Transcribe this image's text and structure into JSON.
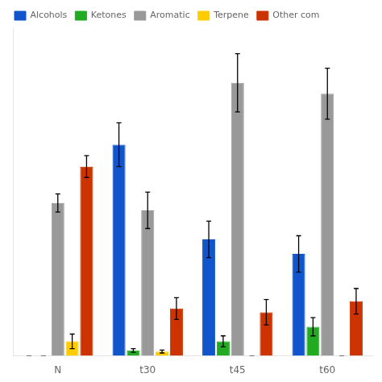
{
  "chart_data": {
    "type": "bar",
    "categories": [
      "N",
      "t30",
      "t45",
      "t60"
    ],
    "series": [
      {
        "name": "Alcohols",
        "color": "#1155CC",
        "values": [
          0.0,
          58.0,
          32.0,
          28.0
        ],
        "errors": [
          0.0,
          6.0,
          5.0,
          5.0
        ]
      },
      {
        "name": "Ketones",
        "color": "#22AA22",
        "values": [
          0.0,
          1.5,
          4.0,
          8.0
        ],
        "errors": [
          0.0,
          0.5,
          1.5,
          2.5
        ]
      },
      {
        "name": "Aromatic",
        "color": "#999999",
        "values": [
          42.0,
          40.0,
          75.0,
          72.0
        ],
        "errors": [
          2.5,
          5.0,
          8.0,
          7.0
        ]
      },
      {
        "name": "Terpene",
        "color": "#FFCC00",
        "values": [
          4.0,
          1.2,
          0.0,
          0.0
        ],
        "errors": [
          2.0,
          0.4,
          0.0,
          0.0
        ]
      },
      {
        "name": "Other com",
        "color": "#CC3300",
        "values": [
          52.0,
          13.0,
          12.0,
          15.0
        ],
        "errors": [
          3.0,
          3.0,
          3.5,
          3.5
        ]
      }
    ],
    "ylim": [
      0,
      90
    ],
    "grid": false,
    "legend": "upper left",
    "tick_labels": "x"
  }
}
